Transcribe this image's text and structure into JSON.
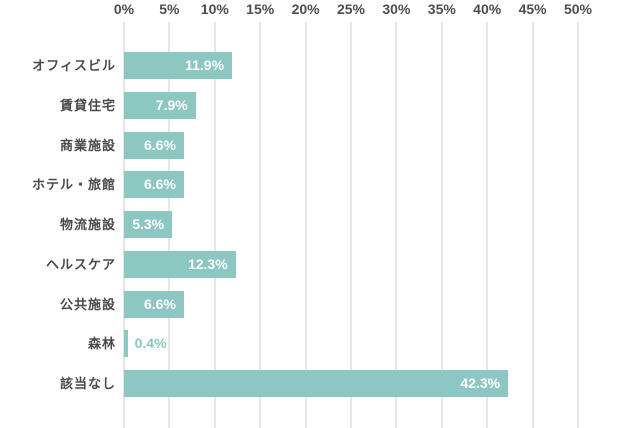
{
  "chart_data": {
    "type": "bar",
    "orientation": "horizontal",
    "title": "",
    "xlabel": "",
    "ylabel": "",
    "axis_position": "top",
    "grid": true,
    "xlim": [
      0,
      50
    ],
    "x_ticks": [
      "0%",
      "5%",
      "10%",
      "15%",
      "20%",
      "25%",
      "30%",
      "35%",
      "40%",
      "45%",
      "50%"
    ],
    "x_tick_values": [
      0,
      5,
      10,
      15,
      20,
      25,
      30,
      35,
      40,
      45,
      50
    ],
    "categories": [
      "オフィスビル",
      "賃貸住宅",
      "商業施設",
      "ホテル・旅館",
      "物流施設",
      "ヘルスケア",
      "公共施設",
      "森林",
      "該当なし"
    ],
    "values": [
      11.9,
      7.9,
      6.6,
      6.6,
      5.3,
      12.3,
      6.6,
      0.4,
      42.3
    ],
    "value_labels": [
      "11.9%",
      "7.9%",
      "6.6%",
      "6.6%",
      "5.3%",
      "12.3%",
      "6.6%",
      "0.4%",
      "42.3%"
    ],
    "outside_label_threshold": 2,
    "colors": {
      "bar": "#8cc8c1",
      "grid": "#cccccc",
      "axis_label": "#4d4d4d",
      "category_label": "#4a4a4a",
      "value_inside": "#ffffff",
      "value_outside": "#8cc8c1",
      "background": "#ffffff"
    }
  }
}
